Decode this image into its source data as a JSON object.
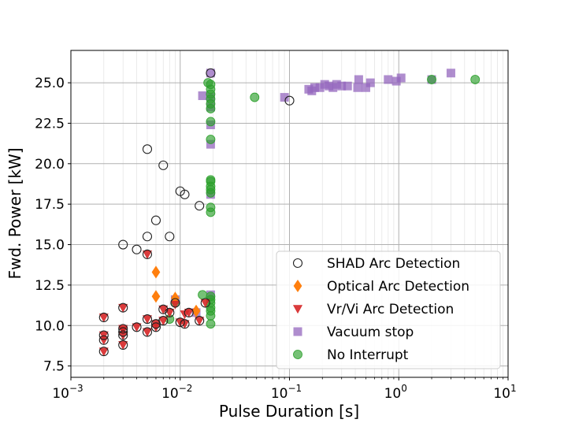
{
  "chart_data": {
    "type": "scatter",
    "xlabel": "Pulse Duration [s]",
    "ylabel": "Fwd. Power [kW]",
    "xscale": "log",
    "xlim": [
      0.001,
      10
    ],
    "ylim": [
      6.8,
      27.0
    ],
    "grid": true,
    "legend_position": "lower-right",
    "x_ticks": [
      {
        "value": 0.001,
        "base": "10",
        "exp": "−3"
      },
      {
        "value": 0.01,
        "base": "10",
        "exp": "−2"
      },
      {
        "value": 0.1,
        "base": "10",
        "exp": "−1"
      },
      {
        "value": 1,
        "base": "10",
        "exp": "0"
      },
      {
        "value": 10,
        "base": "10",
        "exp": "1"
      }
    ],
    "y_ticks": [
      {
        "value": 7.5,
        "label": "7.5"
      },
      {
        "value": 10.0,
        "label": "10.0"
      },
      {
        "value": 12.5,
        "label": "12.5"
      },
      {
        "value": 15.0,
        "label": "15.0"
      },
      {
        "value": 17.5,
        "label": "17.5"
      },
      {
        "value": 20.0,
        "label": "20.0"
      },
      {
        "value": 22.5,
        "label": "22.5"
      },
      {
        "value": 25.0,
        "label": "25.0"
      }
    ],
    "series": [
      {
        "name": "SHAD Arc Detection",
        "marker": "circle-open",
        "color": "#222222",
        "points": [
          [
            0.002,
            8.4
          ],
          [
            0.002,
            9.1
          ],
          [
            0.002,
            9.4
          ],
          [
            0.002,
            10.5
          ],
          [
            0.003,
            8.8
          ],
          [
            0.003,
            9.4
          ],
          [
            0.003,
            9.6
          ],
          [
            0.003,
            9.8
          ],
          [
            0.003,
            11.1
          ],
          [
            0.003,
            15.0
          ],
          [
            0.004,
            9.9
          ],
          [
            0.004,
            14.7
          ],
          [
            0.005,
            9.6
          ],
          [
            0.005,
            10.4
          ],
          [
            0.005,
            14.4
          ],
          [
            0.005,
            15.5
          ],
          [
            0.005,
            20.9
          ],
          [
            0.006,
            9.9
          ],
          [
            0.006,
            10.1
          ],
          [
            0.006,
            16.5
          ],
          [
            0.007,
            10.3
          ],
          [
            0.007,
            11.0
          ],
          [
            0.007,
            19.9
          ],
          [
            0.008,
            10.8
          ],
          [
            0.008,
            15.5
          ],
          [
            0.009,
            11.4
          ],
          [
            0.01,
            10.2
          ],
          [
            0.01,
            18.3
          ],
          [
            0.011,
            10.1
          ],
          [
            0.011,
            18.1
          ],
          [
            0.012,
            10.8
          ],
          [
            0.015,
            10.3
          ],
          [
            0.015,
            17.4
          ],
          [
            0.017,
            11.4
          ],
          [
            0.019,
            25.6
          ],
          [
            0.1,
            23.9
          ]
        ]
      },
      {
        "name": "Optical Arc Detection",
        "marker": "diamond",
        "color": "#ff7f0e",
        "points": [
          [
            0.006,
            11.8
          ],
          [
            0.006,
            13.3
          ],
          [
            0.009,
            11.7
          ],
          [
            0.014,
            10.9
          ]
        ]
      },
      {
        "name": "Vr/Vi Arc Detection",
        "marker": "triangle-down",
        "color": "#d62728",
        "points": [
          [
            0.002,
            8.4
          ],
          [
            0.002,
            9.1
          ],
          [
            0.002,
            9.4
          ],
          [
            0.002,
            10.5
          ],
          [
            0.003,
            8.8
          ],
          [
            0.003,
            9.4
          ],
          [
            0.003,
            9.7
          ],
          [
            0.003,
            9.8
          ],
          [
            0.003,
            11.1
          ],
          [
            0.004,
            9.9
          ],
          [
            0.005,
            9.6
          ],
          [
            0.005,
            10.4
          ],
          [
            0.005,
            14.4
          ],
          [
            0.006,
            9.9
          ],
          [
            0.006,
            10.1
          ],
          [
            0.007,
            10.3
          ],
          [
            0.007,
            11.0
          ],
          [
            0.008,
            10.8
          ],
          [
            0.009,
            11.3
          ],
          [
            0.01,
            10.2
          ],
          [
            0.011,
            10.1
          ],
          [
            0.011,
            10.7
          ],
          [
            0.012,
            10.8
          ],
          [
            0.015,
            10.3
          ],
          [
            0.017,
            11.4
          ]
        ]
      },
      {
        "name": "Vacuum stop",
        "marker": "square",
        "color": "#9467bd",
        "points": [
          [
            0.009,
            11.6
          ],
          [
            0.014,
            10.8
          ],
          [
            0.016,
            24.2
          ],
          [
            0.019,
            11.9
          ],
          [
            0.019,
            18.1
          ],
          [
            0.019,
            21.2
          ],
          [
            0.019,
            22.4
          ],
          [
            0.019,
            23.5
          ],
          [
            0.019,
            24.1
          ],
          [
            0.019,
            25.6
          ],
          [
            0.09,
            24.1
          ],
          [
            0.15,
            24.6
          ],
          [
            0.16,
            24.5
          ],
          [
            0.17,
            24.7
          ],
          [
            0.19,
            24.7
          ],
          [
            0.21,
            24.9
          ],
          [
            0.23,
            24.8
          ],
          [
            0.25,
            24.7
          ],
          [
            0.27,
            24.9
          ],
          [
            0.3,
            24.8
          ],
          [
            0.34,
            24.8
          ],
          [
            0.42,
            24.7
          ],
          [
            0.43,
            25.2
          ],
          [
            0.5,
            24.7
          ],
          [
            0.55,
            25.0
          ],
          [
            0.8,
            25.2
          ],
          [
            0.95,
            25.1
          ],
          [
            1.05,
            25.3
          ],
          [
            2.0,
            25.2
          ],
          [
            3.0,
            25.6
          ]
        ]
      },
      {
        "name": "No Interrupt",
        "marker": "circle",
        "color": "#2ca02c",
        "points": [
          [
            0.008,
            10.4
          ],
          [
            0.009,
            11.4
          ],
          [
            0.016,
            11.9
          ],
          [
            0.018,
            25.0
          ],
          [
            0.019,
            10.1
          ],
          [
            0.019,
            10.6
          ],
          [
            0.019,
            10.9
          ],
          [
            0.019,
            11.1
          ],
          [
            0.019,
            11.4
          ],
          [
            0.019,
            11.6
          ],
          [
            0.019,
            11.8
          ],
          [
            0.019,
            17.0
          ],
          [
            0.019,
            17.3
          ],
          [
            0.019,
            18.2
          ],
          [
            0.019,
            18.4
          ],
          [
            0.019,
            18.6
          ],
          [
            0.019,
            18.9
          ],
          [
            0.019,
            19.0
          ],
          [
            0.019,
            21.5
          ],
          [
            0.019,
            22.6
          ],
          [
            0.019,
            23.4
          ],
          [
            0.019,
            23.7
          ],
          [
            0.019,
            24.0
          ],
          [
            0.019,
            24.3
          ],
          [
            0.019,
            24.6
          ],
          [
            0.019,
            24.9
          ],
          [
            0.048,
            24.1
          ],
          [
            2.0,
            25.2
          ],
          [
            5.0,
            25.2
          ]
        ]
      }
    ]
  }
}
